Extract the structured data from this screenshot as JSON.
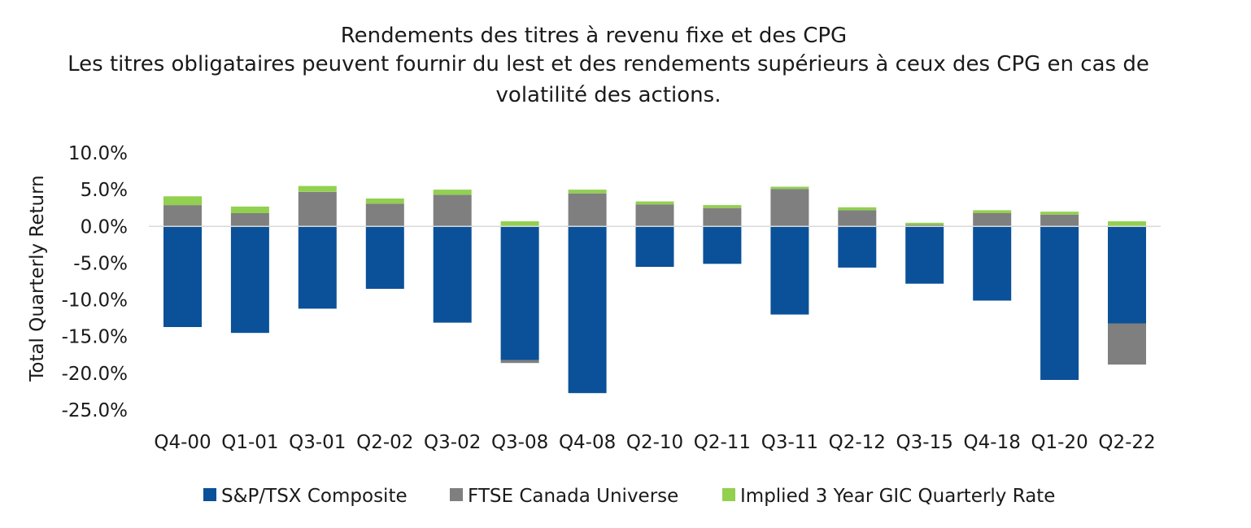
{
  "chart_data": {
    "type": "bar",
    "stacked": true,
    "title": "Rendements des titres à revenu fixe et des CPG",
    "subtitle_lines": [
      "Les titres obligataires peuvent fournir du lest et des rendements supérieurs à ceux des CPG en cas de",
      "volatilité des actions."
    ],
    "ylabel": "Total Quarterly Return",
    "xlabel": "",
    "ylim": [
      -25,
      10
    ],
    "yticks": [
      10,
      5,
      0,
      -5,
      -10,
      -15,
      -20,
      -25
    ],
    "ytick_labels": [
      "10.0%",
      "5.0%",
      "0.0%",
      "-5.0%",
      "-10.0%",
      "-15.0%",
      "-20.0%",
      "-25.0%"
    ],
    "grid": false,
    "legend_position": "bottom",
    "categories": [
      "Q4-00",
      "Q1-01",
      "Q3-01",
      "Q2-02",
      "Q3-02",
      "Q3-08",
      "Q4-08",
      "Q2-10",
      "Q2-11",
      "Q3-11",
      "Q2-12",
      "Q3-15",
      "Q4-18",
      "Q1-20",
      "Q2-22"
    ],
    "series": [
      {
        "name": "S&P/TSX Composite",
        "color": "#0a5199",
        "values": [
          -13.7,
          -14.5,
          -11.2,
          -8.5,
          -13.1,
          -18.2,
          -22.7,
          -5.5,
          -5.1,
          -12.0,
          -5.6,
          -7.8,
          -10.1,
          -20.9,
          -13.2
        ]
      },
      {
        "name": "FTSE Canada Universe",
        "color": "#7f7f7f",
        "values": [
          2.9,
          1.8,
          4.7,
          3.1,
          4.3,
          -0.4,
          4.5,
          3.0,
          2.5,
          5.1,
          2.2,
          0.2,
          1.8,
          1.6,
          -5.6
        ]
      },
      {
        "name": "Implied 3 Year GIC Quarterly Rate",
        "color": "#92d050",
        "values": [
          1.2,
          0.9,
          0.8,
          0.7,
          0.7,
          0.7,
          0.5,
          0.4,
          0.4,
          0.3,
          0.4,
          0.3,
          0.4,
          0.4,
          0.7
        ]
      }
    ]
  },
  "colors": {
    "axis_line": "#d9d9d9",
    "text": "#1a1a1a"
  }
}
